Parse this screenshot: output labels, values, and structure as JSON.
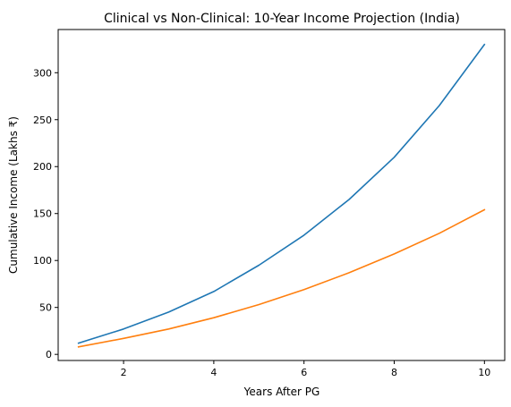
{
  "chart_data": {
    "type": "line",
    "title": "Clinical vs Non-Clinical: 10-Year Income Projection (India)",
    "xlabel": "Years After PG",
    "ylabel": "Cumulative Income (Lakhs ₹)",
    "x": [
      1,
      2,
      3,
      4,
      5,
      6,
      7,
      8,
      9,
      10
    ],
    "xlim": [
      0.55,
      10.45
    ],
    "ylim": [
      -6.5,
      346
    ],
    "xticks": [
      2,
      4,
      6,
      8,
      10
    ],
    "yticks": [
      0,
      50,
      100,
      150,
      200,
      250,
      300
    ],
    "grid": false,
    "legend": "none",
    "series": [
      {
        "color": "#1f77b4",
        "values": [
          12,
          27,
          45,
          67,
          95,
          127,
          165,
          210,
          265,
          330
        ]
      },
      {
        "color": "#ff7f0e",
        "values": [
          8,
          17,
          27,
          39,
          53,
          69,
          87,
          107,
          129,
          154
        ]
      }
    ]
  }
}
